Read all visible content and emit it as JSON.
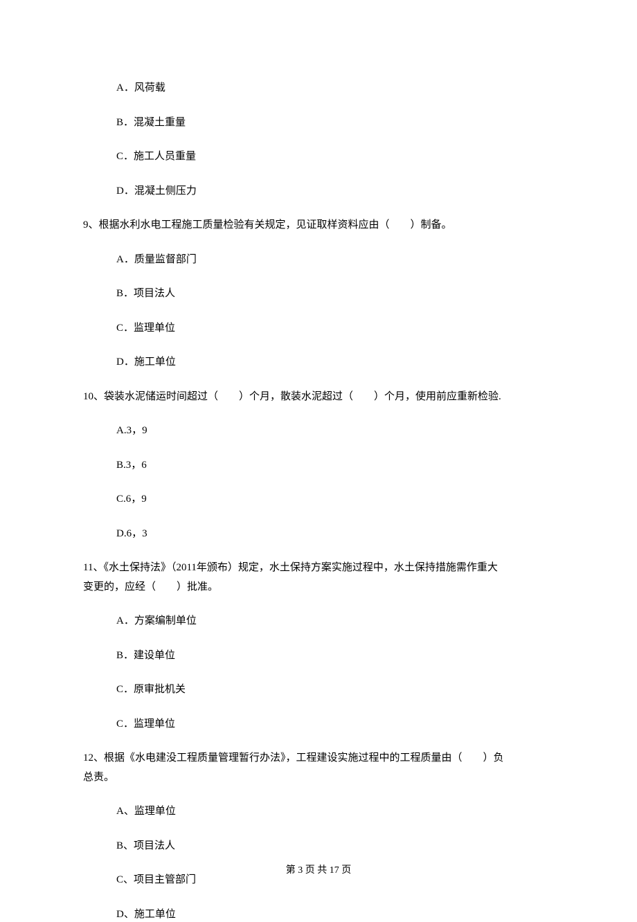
{
  "q8": {
    "A": "A．风荷载",
    "B": "B．混凝土重量",
    "C": "C．施工人员重量",
    "D": "D．混凝土侧压力"
  },
  "q9": {
    "stem": "9、根据水利水电工程施工质量检验有关规定，见证取样资料应由（　　）制备。",
    "A": "A．质量监督部门",
    "B": "B．项目法人",
    "C": "C．监理单位",
    "D": "D．施工单位"
  },
  "q10": {
    "stem": "10、袋装水泥储运时间超过（　　）个月，散装水泥超过（　　）个月，使用前应重新检验.",
    "A": "A.3，9",
    "B": "B.3，6",
    "C": "C.6，9",
    "D": "D.6，3"
  },
  "q11": {
    "stem1": "11、《水土保持法》（2011年颁布）规定，水土保持方案实施过程中，水土保持措施需作重大",
    "stem2": "变更的，应经（　　）批准。",
    "A": "A．方案编制单位",
    "B": "B．建设单位",
    "C": "C．原审批机关",
    "D": "C．监理单位"
  },
  "q12": {
    "stem1": "12、根据《水电建没工程质量管理暂行办法》，工程建设实施过程中的工程质量由（　　）负",
    "stem2": "总责。",
    "A": "A、监理单位",
    "B": "B、项目法人",
    "C": "C、项目主管部门",
    "D": "D、施工单位"
  },
  "footer": "第 3 页 共 17 页"
}
